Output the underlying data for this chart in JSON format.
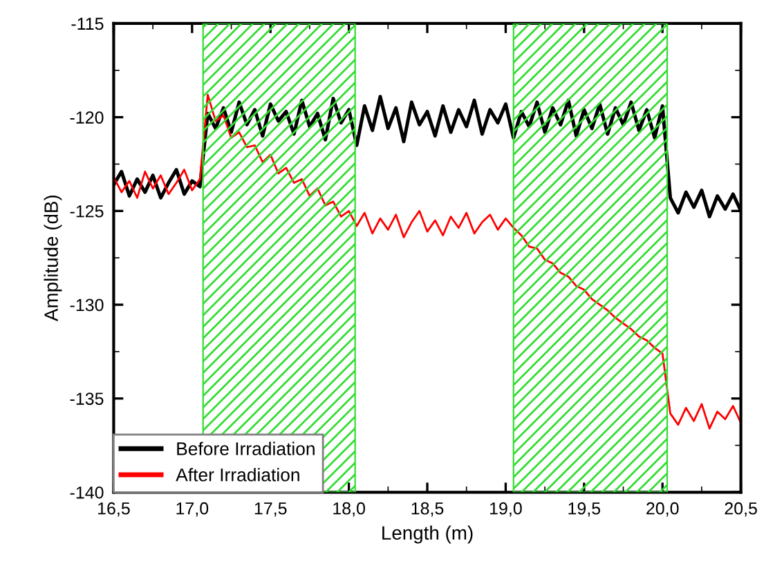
{
  "chart_data": {
    "type": "line",
    "xlabel": "Length (m)",
    "ylabel": "Amplitude (dB)",
    "x": [
      16.5,
      16.55,
      16.6,
      16.65,
      16.7,
      16.75,
      16.8,
      16.85,
      16.9,
      16.95,
      17.0,
      17.05,
      17.1,
      17.15,
      17.2,
      17.25,
      17.3,
      17.35,
      17.4,
      17.45,
      17.5,
      17.55,
      17.6,
      17.65,
      17.7,
      17.75,
      17.8,
      17.85,
      17.9,
      17.95,
      18.0,
      18.05,
      18.1,
      18.15,
      18.2,
      18.25,
      18.3,
      18.35,
      18.4,
      18.45,
      18.5,
      18.55,
      18.6,
      18.65,
      18.7,
      18.75,
      18.8,
      18.85,
      18.9,
      18.95,
      19.0,
      19.05,
      19.1,
      19.15,
      19.2,
      19.25,
      19.3,
      19.35,
      19.4,
      19.45,
      19.5,
      19.55,
      19.6,
      19.65,
      19.7,
      19.75,
      19.8,
      19.85,
      19.9,
      19.95,
      20.0,
      20.05,
      20.1,
      20.15,
      20.2,
      20.25,
      20.3,
      20.35,
      20.4,
      20.45,
      20.5
    ],
    "series": [
      {
        "name": "Before Irradiation",
        "color": "#000000",
        "values": [
          -123.6,
          -122.9,
          -124.2,
          -123.3,
          -124.0,
          -123.1,
          -124.3,
          -123.5,
          -122.8,
          -124.1,
          -123.4,
          -123.7,
          -119.8,
          -120.6,
          -119.5,
          -120.8,
          -119.2,
          -120.4,
          -119.6,
          -121.0,
          -119.3,
          -120.2,
          -119.7,
          -120.9,
          -119.1,
          -120.5,
          -119.8,
          -121.2,
          -119.0,
          -120.3,
          -119.6,
          -121.5,
          -119.4,
          -120.7,
          -118.9,
          -120.6,
          -119.5,
          -121.3,
          -119.2,
          -120.4,
          -119.7,
          -121.0,
          -119.4,
          -120.8,
          -119.6,
          -120.5,
          -119.1,
          -120.9,
          -119.6,
          -120.3,
          -119.3,
          -121.1,
          -119.7,
          -120.5,
          -119.2,
          -120.8,
          -119.5,
          -120.4,
          -119.1,
          -121.0,
          -119.6,
          -120.6,
          -119.3,
          -120.9,
          -119.5,
          -120.4,
          -119.2,
          -120.7,
          -119.6,
          -121.1,
          -119.4,
          -124.3,
          -125.1,
          -124.0,
          -124.8,
          -123.9,
          -125.3,
          -124.2,
          -124.9,
          -124.1,
          -125.0
        ]
      },
      {
        "name": "After Irradiation",
        "color": "#ff0000",
        "values": [
          -123.2,
          -124.0,
          -123.4,
          -124.3,
          -122.9,
          -123.8,
          -123.1,
          -124.1,
          -123.5,
          -122.8,
          -123.9,
          -123.3,
          -118.8,
          -120.2,
          -119.9,
          -121.1,
          -120.8,
          -121.6,
          -121.5,
          -122.4,
          -122.0,
          -123.0,
          -122.7,
          -123.5,
          -123.3,
          -124.2,
          -123.8,
          -124.7,
          -124.5,
          -125.3,
          -125.0,
          -125.8,
          -125.1,
          -126.2,
          -125.4,
          -126.0,
          -125.2,
          -126.4,
          -125.6,
          -125.0,
          -126.1,
          -125.5,
          -126.3,
          -125.3,
          -125.9,
          -125.1,
          -126.2,
          -125.6,
          -125.2,
          -126.0,
          -125.4,
          -125.9,
          -126.3,
          -126.9,
          -127.0,
          -127.6,
          -127.8,
          -128.3,
          -128.5,
          -129.0,
          -129.2,
          -129.7,
          -130.0,
          -130.3,
          -130.7,
          -131.0,
          -131.3,
          -131.7,
          -131.9,
          -132.3,
          -132.6,
          -135.8,
          -136.4,
          -135.5,
          -136.2,
          -135.3,
          -136.6,
          -135.7,
          -136.1,
          -135.4,
          -136.3
        ]
      }
    ],
    "bands": [
      {
        "axis": "x",
        "from": 17.07,
        "to": 18.04,
        "color": "#33dd33"
      },
      {
        "axis": "x",
        "from": 19.05,
        "to": 20.03,
        "color": "#33dd33"
      }
    ],
    "xlim": [
      16.5,
      20.5
    ],
    "xticks": [
      {
        "value": 16.5,
        "label": "16,5"
      },
      {
        "value": 17.0,
        "label": "17,0"
      },
      {
        "value": 17.5,
        "label": "17,5"
      },
      {
        "value": 18.0,
        "label": "18,0"
      },
      {
        "value": 18.5,
        "label": "18,5"
      },
      {
        "value": 19.0,
        "label": "19,0"
      },
      {
        "value": 19.5,
        "label": "19,5"
      },
      {
        "value": 20.0,
        "label": "20,0"
      },
      {
        "value": 20.5,
        "label": "20,5"
      }
    ],
    "ylim": [
      -140,
      -115
    ],
    "yticks": [
      -140,
      -135,
      -130,
      -125,
      -120,
      -115
    ],
    "legend": "bottom left",
    "grid": false,
    "marker": "none",
    "line_style": "solid"
  }
}
